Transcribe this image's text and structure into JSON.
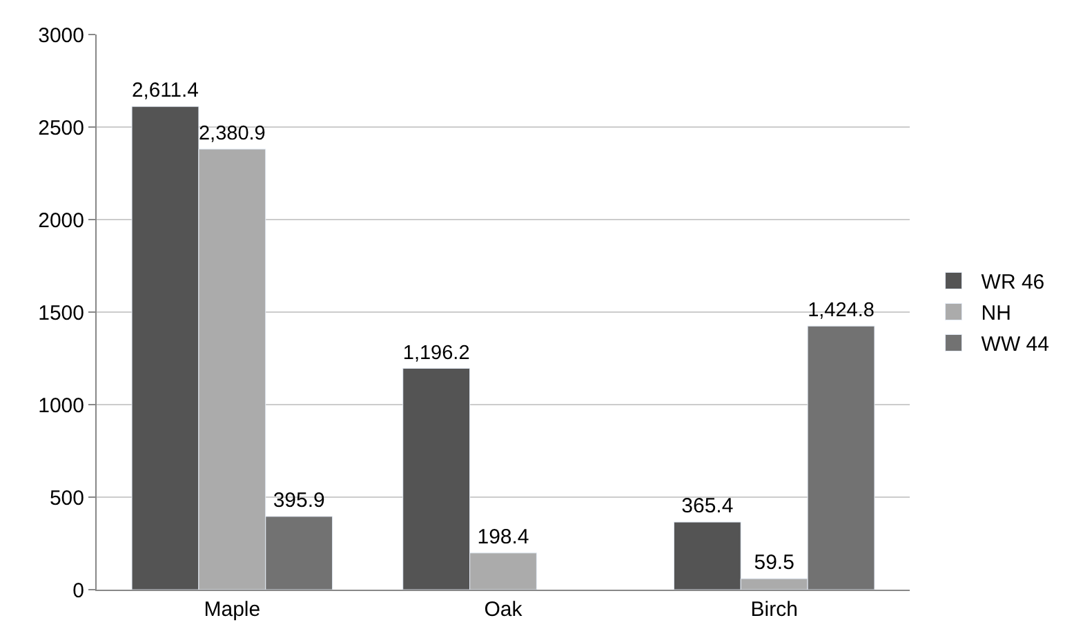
{
  "chart_data": {
    "type": "bar",
    "categories": [
      "Maple",
      "Oak",
      "Birch"
    ],
    "series": [
      {
        "name": "WR 46",
        "color": "#545454",
        "values": [
          2611.4,
          1196.2,
          365.4
        ],
        "value_labels": [
          "2,611.4",
          "1,196.2",
          "365.4"
        ]
      },
      {
        "name": "NH",
        "color": "#ababab",
        "values": [
          2380.9,
          198.4,
          59.5
        ],
        "value_labels": [
          "2,380.9",
          "198.4",
          "59.5"
        ]
      },
      {
        "name": "WW 44",
        "color": "#727272",
        "values": [
          395.9,
          null,
          1424.8
        ],
        "value_labels": [
          "395.9",
          null,
          "1,424.8"
        ]
      }
    ],
    "ylim": [
      0,
      3000
    ],
    "yticks": [
      0,
      500,
      1000,
      1500,
      2000,
      2500,
      3000
    ],
    "grid": "y",
    "legend": "right"
  }
}
